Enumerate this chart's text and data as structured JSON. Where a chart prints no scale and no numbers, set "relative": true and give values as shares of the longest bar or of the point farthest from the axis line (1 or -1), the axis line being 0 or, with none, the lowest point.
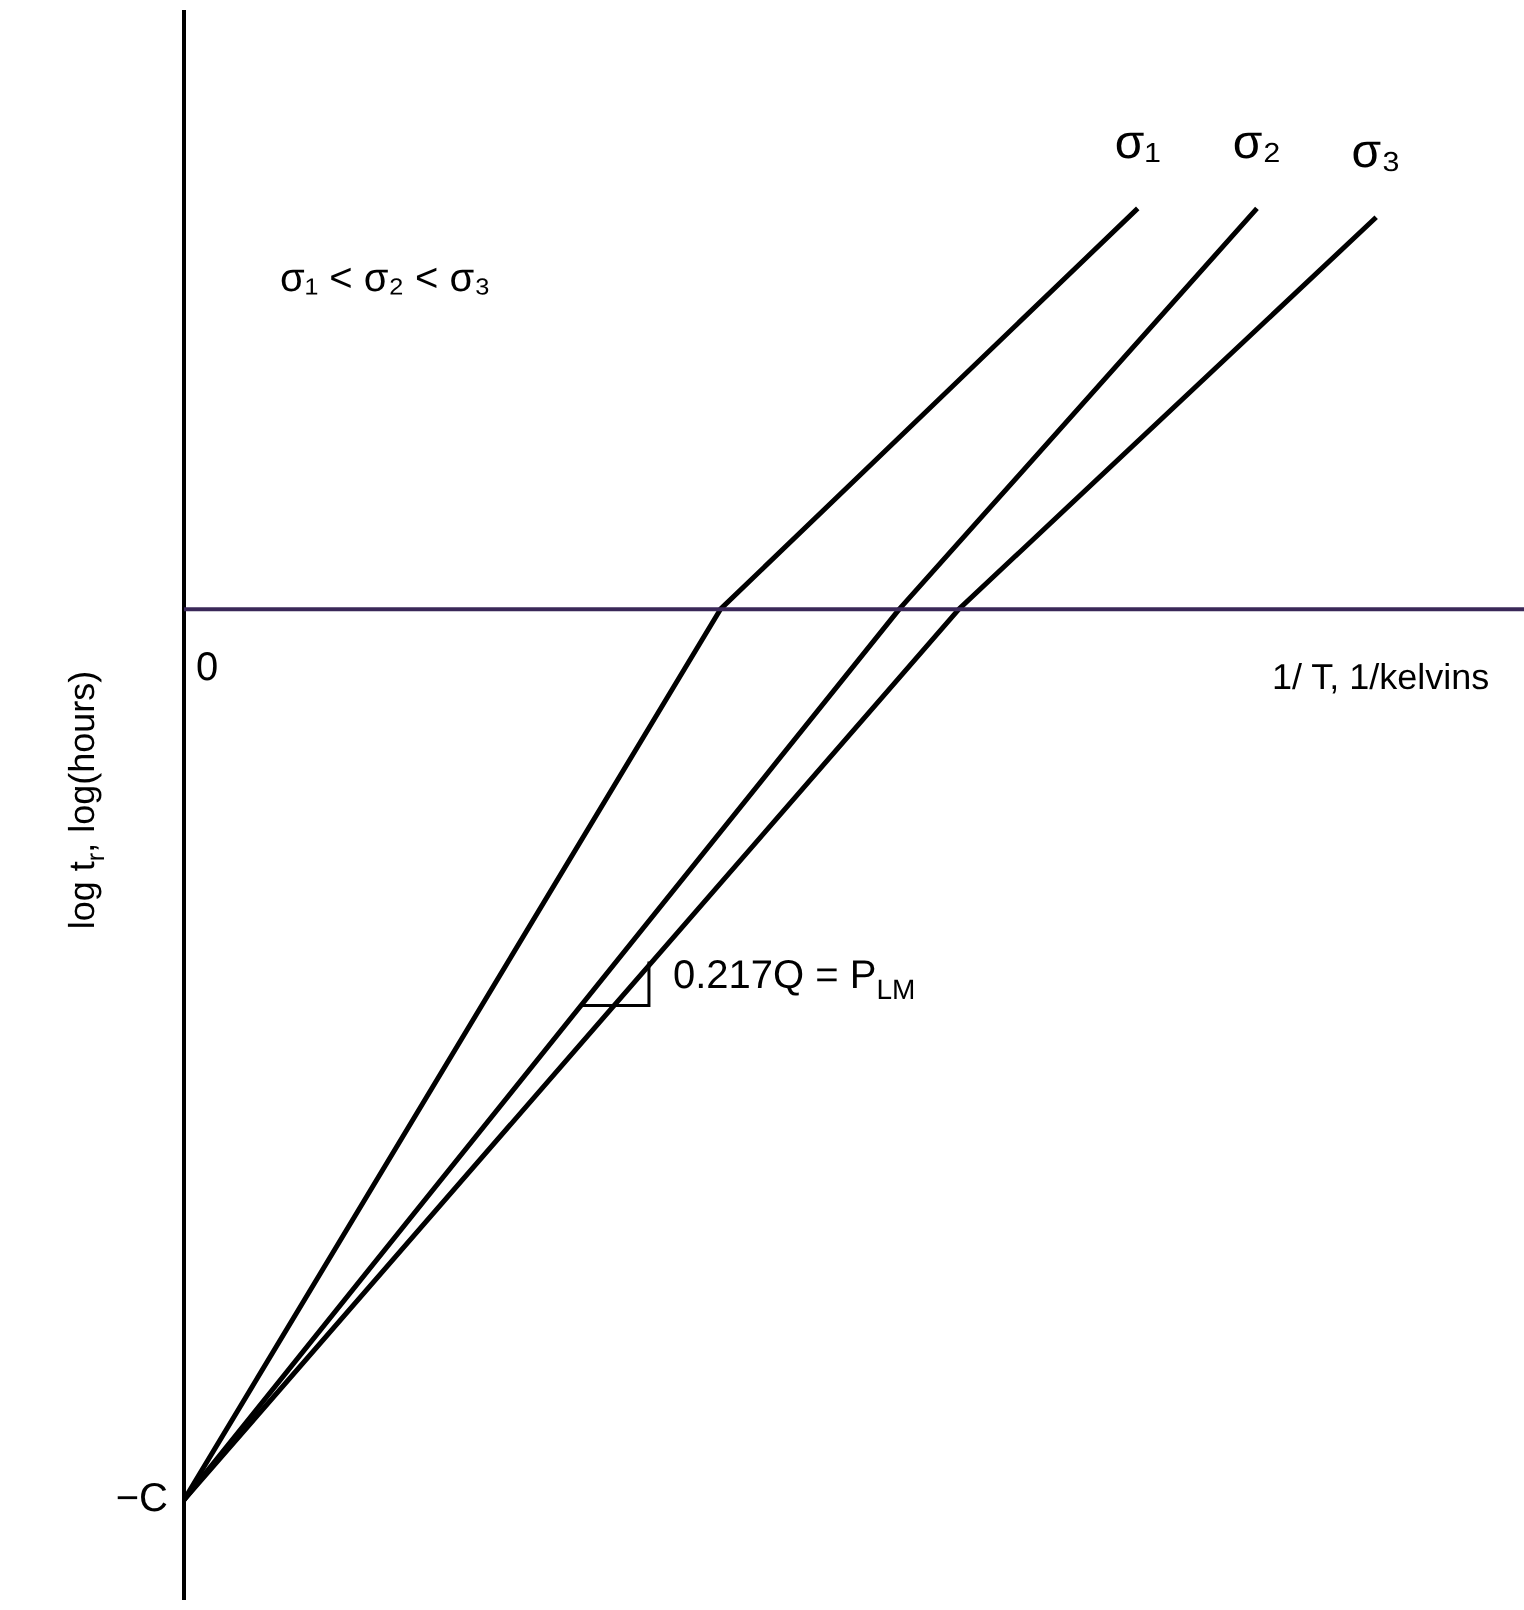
{
  "chart_data": {
    "type": "line",
    "relative": true,
    "legend": false,
    "marker": "none",
    "categories": [
      null,
      null,
      null,
      null,
      null,
      null,
      null,
      null,
      null,
      null,
      null,
      null,
      null,
      null,
      null,
      null,
      null,
      null,
      null,
      null,
      null
    ],
    "series": [
      {
        "name": "σ₁",
        "color": "#000000",
        "values": [
          -1,
          null,
          null,
          null,
          null,
          null,
          null,
          null,
          null,
          0,
          null,
          null,
          null,
          null,
          null,
          null,
          0.45,
          null,
          null,
          null,
          null
        ]
      },
      {
        "name": "σ₂",
        "color": "#000000",
        "values": [
          -1,
          null,
          null,
          null,
          null,
          null,
          null,
          null,
          null,
          null,
          null,
          null,
          0,
          null,
          null,
          null,
          null,
          null,
          0.45,
          null,
          null
        ]
      },
      {
        "name": "σ₃",
        "color": "#000000",
        "values": [
          -1,
          null,
          null,
          null,
          null,
          null,
          null,
          null,
          null,
          null,
          null,
          null,
          null,
          0,
          null,
          null,
          null,
          null,
          null,
          null,
          0.44
        ]
      }
    ],
    "annotations": [
      "σ₁ < σ₂ < σ₃",
      "0.217Q = P$_{LM}$",
      "0",
      "−C",
      "1/ T, 1/kelvins",
      "log t$_{r}$, log(hours)"
    ]
  }
}
